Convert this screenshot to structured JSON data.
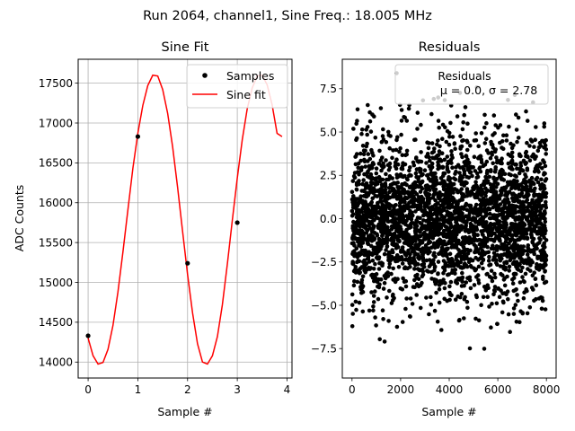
{
  "figure": {
    "suptitle": "Run 2064, channel1, Sine Freq.: 18.005 MHz"
  },
  "chart_data": [
    {
      "type": "line",
      "title": "Sine Fit",
      "xlabel": "Sample #",
      "ylabel": "ADC Counts",
      "xlim": [
        -0.2,
        4.1
      ],
      "ylim": [
        13800,
        17800
      ],
      "grid": true,
      "xticks": [
        0,
        1,
        2,
        3,
        4
      ],
      "xtick_labels": [
        "0",
        "1",
        "2",
        "3",
        "4"
      ],
      "yticks": [
        14000,
        14500,
        15000,
        15500,
        16000,
        16500,
        17000,
        17500
      ],
      "ytick_labels": [
        "14000",
        "14500",
        "15000",
        "15500",
        "16000",
        "16500",
        "17000",
        "17500"
      ],
      "legend": {
        "position": "top-right",
        "entries": [
          "Samples",
          "Sine fit"
        ]
      },
      "samples": {
        "name": "Samples",
        "color": "#000000",
        "x": [
          0,
          1,
          2,
          3
        ],
        "y": [
          14330,
          16830,
          15240,
          15750
        ]
      },
      "fit": {
        "name": "Sine fit",
        "color": "#ff0000",
        "x": [
          0,
          0.1,
          0.2,
          0.3,
          0.4,
          0.5,
          0.6,
          0.7,
          0.8,
          0.9,
          1.0,
          1.1,
          1.2,
          1.3,
          1.4,
          1.5,
          1.6,
          1.7,
          1.8,
          1.9,
          2.0,
          2.1,
          2.2,
          2.3,
          2.4,
          2.5,
          2.6,
          2.7,
          2.8,
          2.9,
          3.0,
          3.1,
          3.2,
          3.3,
          3.4,
          3.5,
          3.6,
          3.7,
          3.8,
          3.9
        ],
        "y": [
          14300,
          14080,
          13975,
          13995,
          14160,
          14460,
          14880,
          15380,
          15910,
          16430,
          16870,
          17220,
          17470,
          17600,
          17590,
          17420,
          17120,
          16700,
          16190,
          15640,
          15100,
          14620,
          14230,
          14000,
          13975,
          14080,
          14320,
          14720,
          15230,
          15780,
          16310,
          16790,
          17180,
          17440,
          17590,
          17600,
          17480,
          17230,
          16870,
          16830
        ]
      }
    },
    {
      "type": "scatter",
      "title": "Residuals",
      "xlabel": "Sample #",
      "ylabel": "",
      "xlim": [
        -400,
        8400
      ],
      "ylim": [
        -9.2,
        9.2
      ],
      "grid": false,
      "xticks": [
        0,
        2000,
        4000,
        6000,
        8000
      ],
      "xtick_labels": [
        "0",
        "2000",
        "4000",
        "6000",
        "8000"
      ],
      "yticks": [
        -7.5,
        -5.0,
        -2.5,
        0.0,
        2.5,
        5.0,
        7.5
      ],
      "ytick_labels": [
        "−7.5",
        "−5.0",
        "−2.5",
        "0.0",
        "2.5",
        "5.0",
        "7.5"
      ],
      "legend": {
        "position": "top-right",
        "entries": [
          "Residuals",
          "μ = 0.0, σ = 2.78"
        ]
      },
      "series": {
        "name": "Residuals",
        "color": "#000000",
        "n_points": 8000,
        "x_range": [
          0,
          8000
        ],
        "mean": 0.0,
        "std": 2.78,
        "min": -9.0,
        "max": 8.9
      }
    }
  ]
}
